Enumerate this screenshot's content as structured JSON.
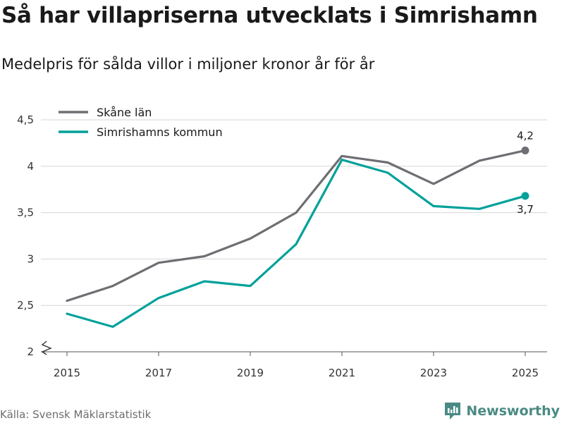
{
  "title": "Så har villapriserna utvecklats i Simrishamn",
  "subtitle": "Medelpris för sålda villor i miljoner kronor år för år",
  "source": "Källa: Svensk Mäklarstatistik",
  "brand": "Newsworthy",
  "chart_data": {
    "type": "line",
    "x": [
      2015,
      2016,
      2017,
      2018,
      2019,
      2020,
      2021,
      2022,
      2023,
      2024,
      2025
    ],
    "x_tick_labels": [
      "2015",
      "2017",
      "2019",
      "2021",
      "2023",
      "2025"
    ],
    "y_tick_labels": [
      "2",
      "2,5",
      "3",
      "3,5",
      "4",
      "4,5"
    ],
    "ylim": [
      2,
      4.5
    ],
    "grid": true,
    "legend_position": "top-left",
    "series": [
      {
        "name": "Skåne län",
        "color": "#6e6e73",
        "values": [
          2.55,
          2.71,
          2.96,
          3.03,
          3.22,
          3.5,
          4.11,
          4.04,
          3.81,
          4.06,
          4.17
        ],
        "end_label": "4,2"
      },
      {
        "name": "Simrishamns kommun",
        "color": "#00a19a",
        "values": [
          2.41,
          2.27,
          2.58,
          2.76,
          2.71,
          3.16,
          4.07,
          3.93,
          3.57,
          3.54,
          3.68
        ],
        "end_label": "3,7"
      }
    ]
  }
}
